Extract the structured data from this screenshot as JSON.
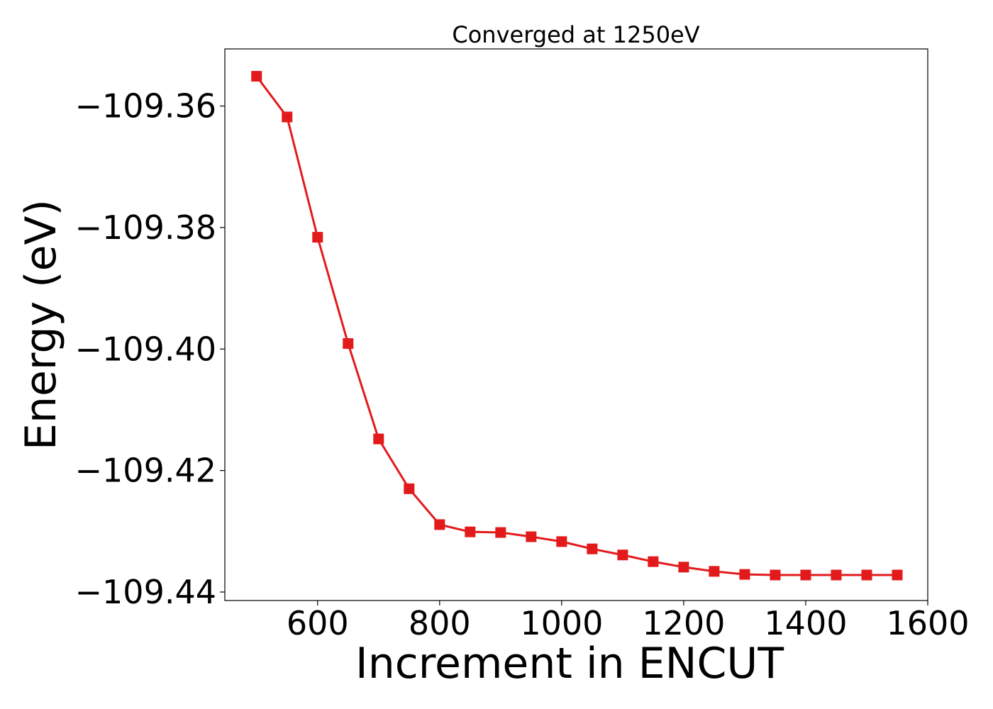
{
  "chart_data": {
    "type": "line",
    "title": "Converged at 1250eV",
    "xlabel": "Increment in ENCUT",
    "ylabel": "Energy (eV)",
    "xlim": [
      448,
      1600
    ],
    "ylim": [
      -109.4414,
      -109.3506
    ],
    "xticks": [
      600,
      800,
      1000,
      1200,
      1400,
      1600
    ],
    "xtick_labels": [
      "600",
      "800",
      "1000",
      "1200",
      "1400",
      "1600"
    ],
    "yticks": [
      -109.36,
      -109.38,
      -109.4,
      -109.42,
      -109.44
    ],
    "ytick_labels": [
      "−109.36",
      "−109.38",
      "−109.40",
      "−109.42",
      "−109.44"
    ],
    "grid": false,
    "series": [
      {
        "color": "#e31a1c",
        "marker": "square",
        "x": [
          500,
          550,
          600,
          650,
          700,
          750,
          800,
          850,
          900,
          950,
          1000,
          1050,
          1100,
          1150,
          1200,
          1250,
          1300,
          1350,
          1400,
          1450,
          1500,
          1550
        ],
        "y": [
          -109.3551,
          -109.3618,
          -109.3816,
          -109.3991,
          -109.4148,
          -109.423,
          -109.4289,
          -109.4301,
          -109.4302,
          -109.4309,
          -109.4317,
          -109.4329,
          -109.4339,
          -109.435,
          -109.4359,
          -109.4366,
          -109.4371,
          -109.4372,
          -109.4372,
          -109.4372,
          -109.4372,
          -109.4372
        ]
      }
    ]
  }
}
